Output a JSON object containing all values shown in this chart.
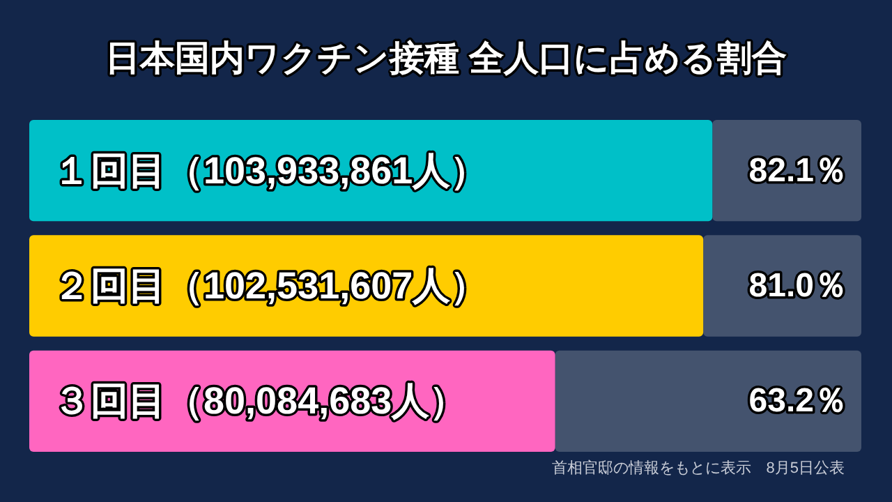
{
  "chart_data": {
    "type": "bar",
    "orientation": "horizontal",
    "title": "日本国内ワクチン接種 全人口に占める割合",
    "categories": [
      "１回目（103,933,861人）",
      "２回目（102,531,607人）",
      "３回目（80,084,683人）"
    ],
    "values": [
      82.1,
      81.0,
      63.2
    ],
    "colors": [
      "#00c0c8",
      "#ffcc00",
      "#ff66c0"
    ],
    "value_labels": [
      "82.1％",
      "81.0％",
      "63.2％"
    ],
    "xlim": [
      0,
      100
    ],
    "annotations": [
      "首相官邸の情報をもとに表示　8月5日公表"
    ]
  }
}
